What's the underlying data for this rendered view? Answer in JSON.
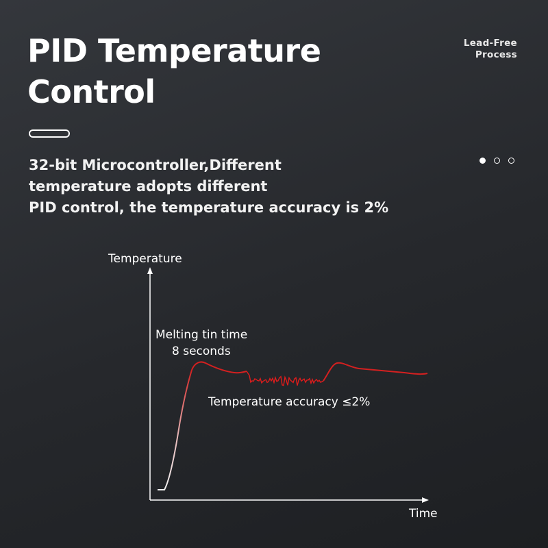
{
  "header": {
    "title_lines": [
      "PID Temperature",
      "Control"
    ],
    "tag_lines": [
      "Lead-Free",
      "Process"
    ]
  },
  "subtitle_lines": [
    "32-bit Microcontroller,Different",
    "temperature adopts different",
    "PID control, the temperature accuracy is 2%"
  ],
  "pager": {
    "count": 3,
    "active": 0
  },
  "diagram": {
    "y_axis_label": "Temperature",
    "x_axis_label": "Time",
    "annotation_melt_lines": [
      "Melting tin time",
      "8 seconds"
    ],
    "annotation_accuracy": "Temperature accuracy ≤2%",
    "curve_color": "#d42020",
    "rise_color": "#e8e8e8"
  }
}
